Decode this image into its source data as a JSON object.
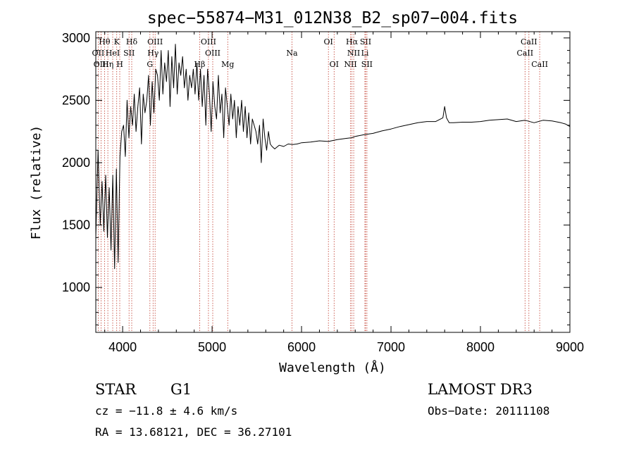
{
  "chart_data": {
    "type": "line",
    "title": "spec−55874−M31_012N38_B2_sp07−004.fits",
    "xlabel": "Wavelength (Å)",
    "ylabel": "Flux (relative)",
    "xlim": [
      3700,
      9000
    ],
    "ylim": [
      640,
      3050
    ],
    "x_ticks": [
      4000,
      5000,
      6000,
      7000,
      8000,
      9000
    ],
    "x_tick_labels": [
      "4000",
      "5000",
      "6000",
      "7000",
      "8000",
      "9000"
    ],
    "y_ticks": [
      1000,
      1500,
      2000,
      2500,
      3000
    ],
    "y_tick_labels": [
      "1000",
      "1500",
      "2000",
      "2500",
      "3000"
    ],
    "series": [
      {
        "name": "flux",
        "x": [
          3700,
          3725,
          3750,
          3770,
          3790,
          3810,
          3830,
          3850,
          3870,
          3890,
          3910,
          3930,
          3950,
          3970,
          3990,
          4010,
          4030,
          4050,
          4070,
          4090,
          4110,
          4130,
          4150,
          4170,
          4190,
          4210,
          4230,
          4250,
          4270,
          4290,
          4310,
          4330,
          4350,
          4370,
          4390,
          4410,
          4430,
          4450,
          4470,
          4490,
          4510,
          4530,
          4550,
          4570,
          4590,
          4610,
          4630,
          4650,
          4670,
          4690,
          4710,
          4730,
          4750,
          4770,
          4790,
          4810,
          4830,
          4850,
          4870,
          4890,
          4910,
          4930,
          4950,
          4970,
          4990,
          5010,
          5030,
          5050,
          5070,
          5090,
          5110,
          5130,
          5150,
          5170,
          5190,
          5210,
          5230,
          5250,
          5270,
          5290,
          5310,
          5330,
          5350,
          5370,
          5390,
          5410,
          5430,
          5450,
          5470,
          5490,
          5510,
          5530,
          5550,
          5570,
          5590,
          5610,
          5630,
          5650,
          5670,
          5700,
          5750,
          5800,
          5850,
          5900,
          5950,
          6000,
          6100,
          6200,
          6300,
          6400,
          6500,
          6560,
          6600,
          6700,
          6800,
          6900,
          7000,
          7100,
          7200,
          7300,
          7400,
          7500,
          7580,
          7600,
          7620,
          7650,
          7700,
          7800,
          7900,
          8000,
          8100,
          8200,
          8300,
          8400,
          8500,
          8600,
          8700,
          8800,
          8900,
          8950,
          9000
        ],
        "values": [
          1400,
          2100,
          1500,
          1850,
          1450,
          1900,
          1400,
          1800,
          1300,
          1900,
          1150,
          1950,
          1200,
          2050,
          2250,
          2300,
          2050,
          2500,
          2200,
          2450,
          2300,
          2550,
          2250,
          2450,
          2600,
          2150,
          2550,
          2400,
          2500,
          2700,
          2300,
          2650,
          2400,
          2750,
          2700,
          2500,
          2900,
          2550,
          2800,
          2650,
          2900,
          2450,
          2850,
          2600,
          2950,
          2550,
          2800,
          2700,
          2850,
          2600,
          2750,
          2500,
          2700,
          2600,
          2750,
          2550,
          2800,
          2500,
          2750,
          2450,
          2700,
          2300,
          2750,
          2550,
          2250,
          2650,
          2450,
          2350,
          2700,
          2400,
          2550,
          2200,
          2600,
          2450,
          2300,
          2550,
          2350,
          2500,
          2200,
          2450,
          2300,
          2500,
          2250,
          2450,
          2200,
          2400,
          2150,
          2350,
          2300,
          2250,
          2150,
          2300,
          2000,
          2350,
          2200,
          2100,
          2250,
          2150,
          2130,
          2110,
          2140,
          2130,
          2150,
          2145,
          2150,
          2160,
          2165,
          2175,
          2170,
          2185,
          2195,
          2200,
          2210,
          2225,
          2235,
          2255,
          2270,
          2290,
          2305,
          2320,
          2330,
          2330,
          2360,
          2450,
          2360,
          2320,
          2320,
          2325,
          2325,
          2330,
          2340,
          2345,
          2350,
          2330,
          2340,
          2320,
          2340,
          2335,
          2320,
          2310,
          2290
        ]
      }
    ],
    "spectral_lines": [
      {
        "label": "Hθ",
        "wavelength": 3798,
        "row": 1
      },
      {
        "label": "K",
        "wavelength": 3934,
        "row": 1
      },
      {
        "label": "Hδ",
        "wavelength": 4102,
        "row": 1
      },
      {
        "label": "OIII",
        "wavelength": 4363,
        "row": 1
      },
      {
        "label": "OIII",
        "wavelength": 4959,
        "row": 1
      },
      {
        "label": "OI",
        "wavelength": 6300,
        "row": 1
      },
      {
        "label": "Hα",
        "wavelength": 6563,
        "row": 1
      },
      {
        "label": "SII",
        "wavelength": 6716,
        "row": 1
      },
      {
        "label": "CaII",
        "wavelength": 8542,
        "row": 1
      },
      {
        "label": "OII",
        "wavelength": 3727,
        "row": 2
      },
      {
        "label": "HeI",
        "wavelength": 3889,
        "row": 2
      },
      {
        "label": "SII",
        "wavelength": 4072,
        "row": 2
      },
      {
        "label": "Hγ",
        "wavelength": 4340,
        "row": 2
      },
      {
        "label": "OIII",
        "wavelength": 5007,
        "row": 2
      },
      {
        "label": "Na",
        "wavelength": 5893,
        "row": 2
      },
      {
        "label": "NII",
        "wavelength": 6583,
        "row": 2
      },
      {
        "label": "Li",
        "wavelength": 6708,
        "row": 2
      },
      {
        "label": "CaII",
        "wavelength": 8498,
        "row": 2
      },
      {
        "label": "OIII",
        "wavelength": 3760,
        "row": 3
      },
      {
        "label": "Hη",
        "wavelength": 3835,
        "row": 3
      },
      {
        "label": "H",
        "wavelength": 3968,
        "row": 3
      },
      {
        "label": "G",
        "wavelength": 4305,
        "row": 3
      },
      {
        "label": "Hβ",
        "wavelength": 4861,
        "row": 3
      },
      {
        "label": "Mg",
        "wavelength": 5175,
        "row": 3
      },
      {
        "label": "OI",
        "wavelength": 6364,
        "row": 3
      },
      {
        "label": "NII",
        "wavelength": 6548,
        "row": 3
      },
      {
        "label": "SII",
        "wavelength": 6731,
        "row": 3
      },
      {
        "label": "CaII",
        "wavelength": 8662,
        "row": 3
      }
    ]
  },
  "info": {
    "class": "STAR",
    "subclass": "G1",
    "survey": "LAMOST DR3",
    "cz": "cz = −11.8 ± 4.6 km/s",
    "obs_date": "Obs−Date: 20111108",
    "radec": "RA =  13.68121, DEC =  36.27101"
  },
  "colors": {
    "spectrum": "#000000",
    "line_marker": "#c0392b",
    "axes": "#000000"
  }
}
